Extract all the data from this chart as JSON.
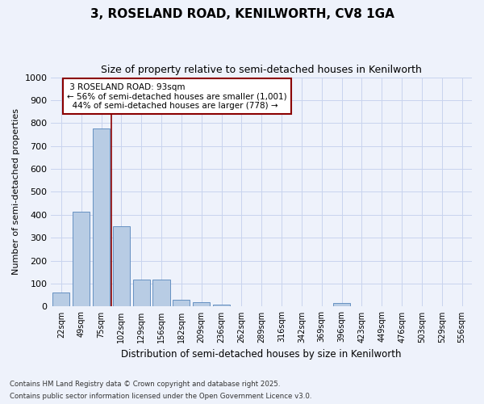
{
  "title": "3, ROSELAND ROAD, KENILWORTH, CV8 1GA",
  "subtitle": "Size of property relative to semi-detached houses in Kenilworth",
  "xlabel": "Distribution of semi-detached houses by size in Kenilworth",
  "ylabel": "Number of semi-detached properties",
  "categories": [
    "22sqm",
    "49sqm",
    "75sqm",
    "102sqm",
    "129sqm",
    "156sqm",
    "182sqm",
    "209sqm",
    "236sqm",
    "262sqm",
    "289sqm",
    "316sqm",
    "342sqm",
    "369sqm",
    "396sqm",
    "423sqm",
    "449sqm",
    "476sqm",
    "503sqm",
    "529sqm",
    "556sqm"
  ],
  "values": [
    60,
    415,
    775,
    350,
    118,
    118,
    30,
    18,
    10,
    0,
    0,
    0,
    0,
    0,
    15,
    0,
    0,
    0,
    0,
    0,
    0
  ],
  "bar_color": "#b8cce4",
  "bar_edge_color": "#5585bb",
  "property_label": "3 ROSELAND ROAD: 93sqm",
  "smaller_pct": 56,
  "smaller_count": 1001,
  "larger_pct": 44,
  "larger_count": 778,
  "vline_color": "#8b0000",
  "annotation_box_edge_color": "#8b0000",
  "ylim": [
    0,
    1000
  ],
  "yticks": [
    0,
    100,
    200,
    300,
    400,
    500,
    600,
    700,
    800,
    900,
    1000
  ],
  "footer_line1": "Contains HM Land Registry data © Crown copyright and database right 2025.",
  "footer_line2": "Contains public sector information licensed under the Open Government Licence v3.0.",
  "bg_color": "#eef2fb",
  "grid_color": "#c8d4ee"
}
